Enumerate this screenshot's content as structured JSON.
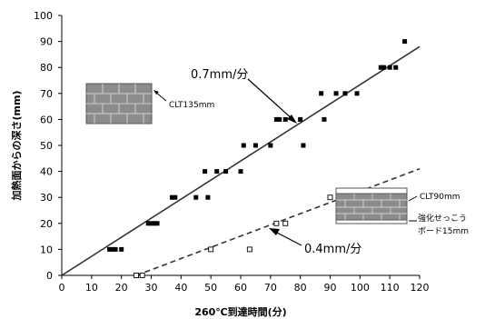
{
  "chart_data": {
    "type": "scatter",
    "xlabel": "260℃到達時間(分)",
    "ylabel": "加熱面からの深さ(mm)",
    "xlim": [
      0,
      120
    ],
    "ylim": [
      0,
      100
    ],
    "xticks": [
      "0",
      "10",
      "20",
      "30",
      "40",
      "50",
      "60",
      "70",
      "80",
      "90",
      "100",
      "110",
      "120"
    ],
    "yticks": [
      "0",
      "10",
      "20",
      "30",
      "40",
      "50",
      "60",
      "70",
      "80",
      "90",
      "100"
    ],
    "grid": false,
    "series": [
      {
        "marker": "filled-square",
        "color": "#000000",
        "points": [
          [
            16,
            10
          ],
          [
            17,
            10
          ],
          [
            18,
            10
          ],
          [
            20,
            10
          ],
          [
            29,
            20
          ],
          [
            30,
            20
          ],
          [
            31,
            20
          ],
          [
            32,
            20
          ],
          [
            37,
            30
          ],
          [
            38,
            30
          ],
          [
            45,
            30
          ],
          [
            49,
            30
          ],
          [
            48,
            40
          ],
          [
            52,
            40
          ],
          [
            55,
            40
          ],
          [
            60,
            40
          ],
          [
            61,
            50
          ],
          [
            65,
            50
          ],
          [
            70,
            50
          ],
          [
            81,
            50
          ],
          [
            72,
            60
          ],
          [
            73,
            60
          ],
          [
            75,
            60
          ],
          [
            80,
            60
          ],
          [
            88,
            60
          ],
          [
            87,
            70
          ],
          [
            92,
            70
          ],
          [
            95,
            70
          ],
          [
            99,
            70
          ],
          [
            107,
            80
          ],
          [
            108,
            80
          ],
          [
            110,
            80
          ],
          [
            112,
            80
          ],
          [
            115,
            90
          ]
        ]
      },
      {
        "marker": "open-square",
        "color": "#000000",
        "points": [
          [
            25,
            0
          ],
          [
            27,
            0
          ],
          [
            50,
            10
          ],
          [
            63,
            10
          ],
          [
            72,
            20
          ],
          [
            75,
            20
          ],
          [
            90,
            30
          ]
        ]
      }
    ],
    "fit_lines": [
      {
        "style": "solid",
        "x": [
          0,
          120
        ],
        "y": [
          0,
          88
        ]
      },
      {
        "style": "dashed",
        "x": [
          25,
          120
        ],
        "y": [
          0,
          41
        ]
      }
    ],
    "annotations": {
      "rate_upper": "0.7mm/分",
      "rate_lower": "0.4mm/分",
      "clt_upper": "CLT135mm",
      "clt_lower": "CLT90mm",
      "board_line1": "強化せっこう",
      "board_line2": "ボード15mm"
    }
  }
}
